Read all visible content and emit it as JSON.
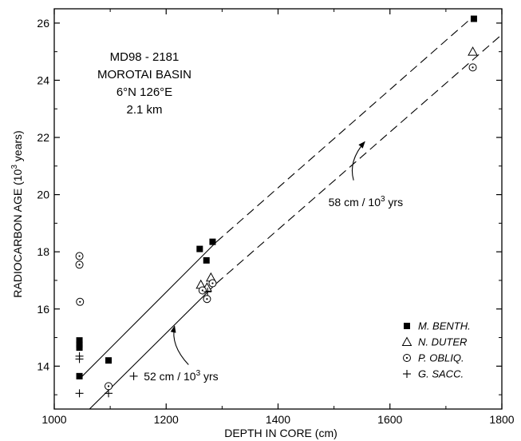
{
  "chart_data": {
    "type": "scatter",
    "xlabel": "DEPTH IN CORE (cm)",
    "ylabel_parts": [
      "RADIOCARBON AGE (10",
      "3",
      " years)"
    ],
    "xlim": [
      1000,
      1800
    ],
    "ylim": [
      12.5,
      26.5
    ],
    "xticks": [
      1000,
      1200,
      1400,
      1600,
      1800
    ],
    "yticks": [
      14,
      16,
      18,
      20,
      22,
      24,
      26
    ],
    "core_info": [
      "MD98 - 2181",
      "MOROTAI BASIN",
      "6°N 126°E",
      "2.1 km"
    ],
    "legend_position": "bottom-right",
    "series": [
      {
        "name": "M. BENTH.",
        "marker": "filled-square",
        "points": [
          {
            "x": 1045,
            "y": 14.9
          },
          {
            "x": 1045,
            "y": 14.75
          },
          {
            "x": 1045,
            "y": 14.65
          },
          {
            "x": 1045,
            "y": 13.65
          },
          {
            "x": 1097,
            "y": 14.2
          },
          {
            "x": 1260,
            "y": 18.1
          },
          {
            "x": 1272,
            "y": 17.7
          },
          {
            "x": 1283,
            "y": 18.35
          },
          {
            "x": 1750,
            "y": 26.15
          }
        ]
      },
      {
        "name": "N. DUTER",
        "marker": "open-triangle",
        "points": [
          {
            "x": 1262,
            "y": 16.85
          },
          {
            "x": 1273,
            "y": 16.75
          },
          {
            "x": 1280,
            "y": 17.1
          },
          {
            "x": 1748,
            "y": 25.0
          }
        ]
      },
      {
        "name": "P. OBLIQ.",
        "marker": "circle-dot",
        "points": [
          {
            "x": 1045,
            "y": 17.85
          },
          {
            "x": 1045,
            "y": 17.55
          },
          {
            "x": 1046,
            "y": 16.25
          },
          {
            "x": 1097,
            "y": 13.3
          },
          {
            "x": 1265,
            "y": 16.65
          },
          {
            "x": 1273,
            "y": 16.35
          },
          {
            "x": 1283,
            "y": 16.9
          },
          {
            "x": 1748,
            "y": 24.45
          }
        ]
      },
      {
        "name": "G. SACC.",
        "marker": "plus",
        "points": [
          {
            "x": 1045,
            "y": 14.35
          },
          {
            "x": 1045,
            "y": 14.25
          },
          {
            "x": 1045,
            "y": 13.05
          },
          {
            "x": 1097,
            "y": 13.05
          },
          {
            "x": 1142,
            "y": 13.65
          },
          {
            "x": 1274,
            "y": 16.6
          }
        ]
      }
    ],
    "trend_lines": [
      {
        "style": "solid",
        "from": {
          "x": 1045,
          "y": 13.55
        },
        "to": {
          "x": 1290,
          "y": 18.35
        }
      },
      {
        "style": "dashed",
        "from": {
          "x": 1290,
          "y": 18.35
        },
        "to": {
          "x": 1750,
          "y": 26.25
        }
      },
      {
        "style": "solid",
        "from": {
          "x": 1063,
          "y": 12.5
        },
        "to": {
          "x": 1290,
          "y": 16.9
        }
      },
      {
        "style": "dashed",
        "from": {
          "x": 1290,
          "y": 16.9
        },
        "to": {
          "x": 1800,
          "y": 25.6
        }
      }
    ],
    "annotations": [
      {
        "text_parts": [
          "58 cm / 10",
          "3",
          " yrs"
        ],
        "label_at": {
          "x": 1490,
          "y": 19.6
        },
        "arrow_from": {
          "x": 1535,
          "y": 20.5
        },
        "arrow_to": {
          "x": 1555,
          "y": 21.85
        }
      },
      {
        "text_parts": [
          "52 cm / 10",
          "3",
          " yrs"
        ],
        "label_at": {
          "x": 1160,
          "y": 13.5
        },
        "arrow_from": {
          "x": 1240,
          "y": 14.05
        },
        "arrow_to": {
          "x": 1215,
          "y": 15.4
        }
      }
    ]
  }
}
